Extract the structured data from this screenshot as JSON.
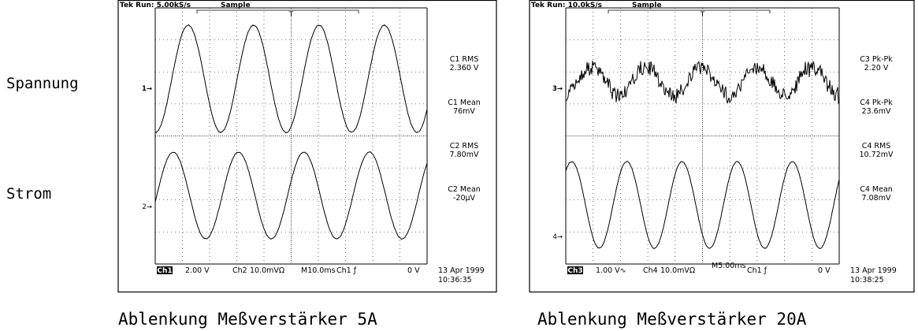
{
  "row_labels": [
    "Spannung",
    "Strom"
  ],
  "panels": [
    {
      "header": {
        "status": "Tek Run: 5.00kS/s",
        "mode": "Sample",
        "trigger_marker": "T"
      },
      "channel_markers": [
        "1→",
        "2→"
      ],
      "readouts": [
        {
          "label": "C1 RMS",
          "value": "2.360 V"
        },
        {
          "label": "C1 Mean",
          "value": "76mV"
        },
        {
          "label": "C2 RMS",
          "value": "7.80mV"
        },
        {
          "label": "C2 Mean",
          "value": "-20µV"
        }
      ],
      "footer": {
        "ch_a": "Ch1",
        "scale_a": "2.00 V",
        "ch_b": "Ch2",
        "scale_b": "10.0mVΩ",
        "timebase": "M10.0ms",
        "trigger": "Ch1 ƒ",
        "level": "0 V",
        "date": "13 Apr 1999",
        "time": "10:36:35"
      },
      "caption": "Ablenkung Meßverstärker 5A"
    },
    {
      "header": {
        "status": "Tek Run: 10.0kS/s",
        "mode": "Sample",
        "trigger_marker": "T"
      },
      "channel_markers": [
        "3→",
        "4→"
      ],
      "readouts": [
        {
          "label": "C3 Pk-Pk",
          "value": "2.20 V"
        },
        {
          "label": "C4 Pk-Pk",
          "value": "23.6mV"
        },
        {
          "label": "C4 RMS",
          "value": "10.72mV"
        },
        {
          "label": "C4 Mean",
          "value": "7.08mV"
        }
      ],
      "footer": {
        "ch_a": "Ch3",
        "scale_a": "1.00 V∿",
        "ch_b": "Ch4",
        "scale_b": "10.0mVΩ",
        "timebase": "M5.00ms",
        "trigger": "Ch1 ƒ",
        "level": "0 V",
        "date": "13 Apr 1999",
        "time": "10:38:25"
      },
      "caption": "Ablenkung Meßverstärker 20A"
    }
  ]
}
